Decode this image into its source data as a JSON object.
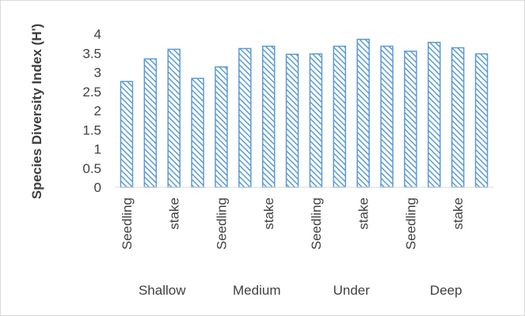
{
  "chart_data": {
    "type": "bar",
    "ylabel": "Species Diversity Index (H')",
    "xlabel": "",
    "title": "",
    "ylim": [
      0,
      4
    ],
    "yticks": [
      "0",
      "0.5",
      "1",
      "1.5",
      "2",
      "2.5",
      "3",
      "3.5",
      "4"
    ],
    "groups": [
      "Shallow",
      "Medium",
      "Under",
      "Deep"
    ],
    "category_labels": [
      "Seedling",
      "stake",
      "Seedling",
      "stake",
      "Seedling",
      "stake",
      "Seedling",
      "stake"
    ],
    "values": [
      2.76,
      3.35,
      3.6,
      2.84,
      3.14,
      3.62,
      3.68,
      3.47,
      3.48,
      3.68,
      3.86,
      3.68,
      3.55,
      3.78,
      3.64,
      3.48
    ],
    "grid": false,
    "legend": "none",
    "bar_color": "#5b9bd5",
    "bar_pattern": "diagonal-hatch"
  }
}
